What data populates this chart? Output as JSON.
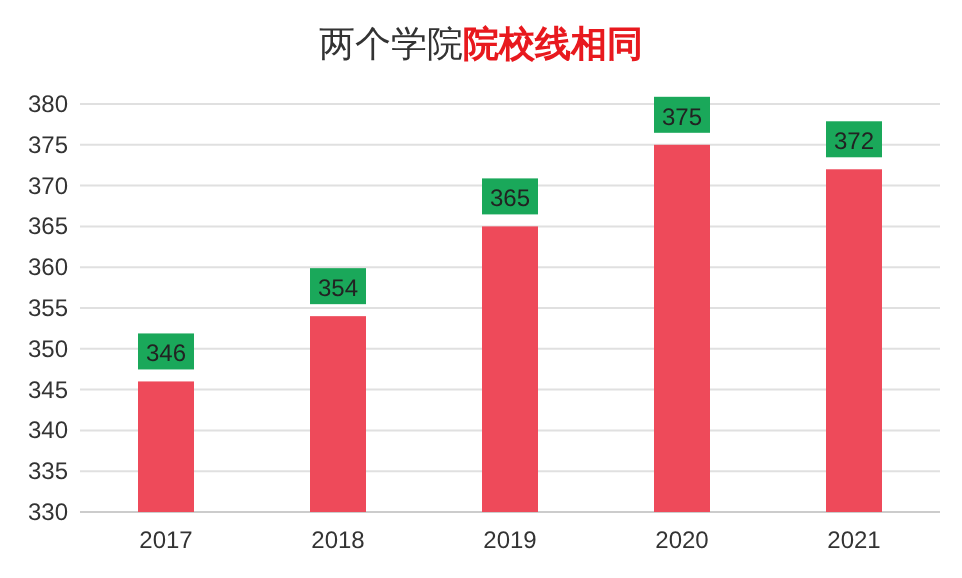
{
  "chart_data": {
    "type": "bar",
    "title": "两个学院**院校线相同**",
    "categories": [
      "2017",
      "2018",
      "2019",
      "2020",
      "2021"
    ],
    "values": [
      346,
      354,
      365,
      375,
      372
    ],
    "color": "#ee4a5a",
    "ylim": [
      330,
      380
    ],
    "yticks": [
      330,
      335,
      340,
      345,
      350,
      355,
      360,
      365,
      370,
      375,
      380
    ],
    "grid": "y",
    "data_labels": true
  }
}
